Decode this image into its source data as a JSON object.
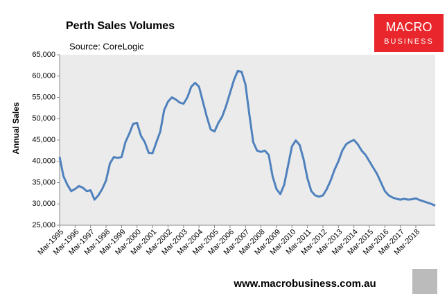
{
  "chart_data": {
    "type": "line",
    "title": "Perth Sales Volumes",
    "subtitle": "Source: CoreLogic",
    "y_label": "Annual Sales",
    "categories": [
      "Mar-1995",
      null,
      null,
      null,
      "Mar-1996",
      null,
      null,
      null,
      "Mar-1997",
      null,
      null,
      null,
      "Mar-1998",
      null,
      null,
      null,
      "Mar-1999",
      null,
      null,
      null,
      "Mar-2000",
      null,
      null,
      null,
      "Mar-2001",
      null,
      null,
      null,
      "Mar-2002",
      null,
      null,
      null,
      "Mar-2003",
      null,
      null,
      null,
      "Mar-2004",
      null,
      null,
      null,
      "Mar-2005",
      null,
      null,
      null,
      "Mar-2006",
      null,
      null,
      null,
      "Mar-2007",
      null,
      null,
      null,
      "Mar-2008",
      null,
      null,
      null,
      "Mar-2009",
      null,
      null,
      null,
      "Mar-2010",
      null,
      null,
      null,
      "Mar-2011",
      null,
      null,
      null,
      "Mar-2012",
      null,
      null,
      null,
      "Mar-2013",
      null,
      null,
      null,
      "Mar-2014",
      null,
      null,
      null,
      "Mar-2015",
      null,
      null,
      null,
      "Mar-2016",
      null,
      null,
      null,
      "Mar-2017",
      null,
      null,
      null,
      "Mar-2018",
      null,
      null,
      null,
      null,
      null
    ],
    "series": [
      {
        "color": "#4f81bd",
        "values": [
          41000,
          36500,
          34500,
          33000,
          33500,
          34200,
          33800,
          33000,
          33200,
          31000,
          32000,
          33500,
          35500,
          39500,
          41000,
          40800,
          41000,
          44500,
          46500,
          48800,
          49000,
          46000,
          44500,
          42000,
          41900,
          44500,
          47000,
          52000,
          54000,
          55000,
          54500,
          53800,
          53500,
          55000,
          57500,
          58400,
          57500,
          54000,
          50500,
          47500,
          47000,
          49000,
          50500,
          53000,
          56000,
          59000,
          61200,
          61000,
          58000,
          51000,
          44500,
          42500,
          42200,
          42500,
          41500,
          36500,
          33500,
          32300,
          34500,
          39000,
          43500,
          44900,
          43800,
          40500,
          36000,
          33000,
          32000,
          31700,
          32000,
          33500,
          35500,
          38000,
          40000,
          42500,
          44000,
          44600,
          45000,
          44000,
          42500,
          41500,
          40000,
          38500,
          37000,
          35000,
          33000,
          32000,
          31500,
          31200,
          31000,
          31200,
          31000,
          31100,
          31300,
          30900,
          30600,
          30300,
          30000,
          29600
        ]
      }
    ],
    "ylim": [
      25000,
      65000
    ],
    "yticks": [
      {
        "value": 25000,
        "label": "25,000"
      },
      {
        "value": 30000,
        "label": "30,000"
      },
      {
        "value": 35000,
        "label": "35,000"
      },
      {
        "value": 40000,
        "label": "40,000"
      },
      {
        "value": 45000,
        "label": "45,000"
      },
      {
        "value": 50000,
        "label": "50,000"
      },
      {
        "value": 55000,
        "label": "55,000"
      },
      {
        "value": 60000,
        "label": "60,000"
      },
      {
        "value": 65000,
        "label": "65,000"
      }
    ]
  },
  "logo": {
    "line1": "MACRO",
    "line2": "BUSINESS"
  },
  "footer": "www.macrobusiness.com.au"
}
